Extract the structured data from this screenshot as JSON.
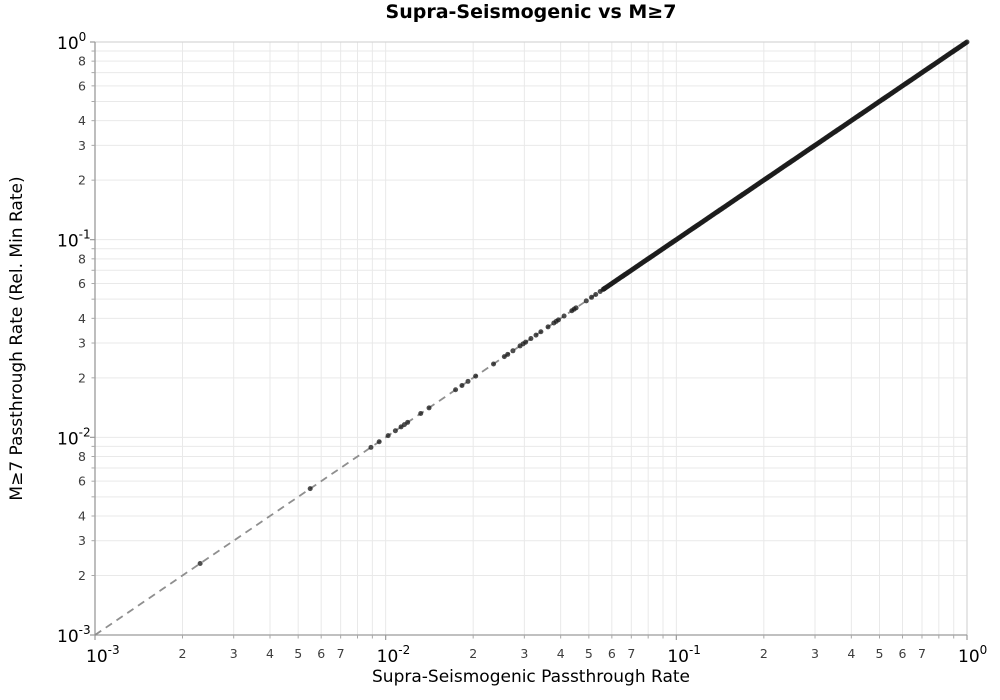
{
  "title": "Supra-Seismogenic vs M≥7",
  "xlabel": "Supra-Seismogenic Passthrough Rate",
  "ylabel": "M≥7 Passthrough Rate (Rel. Min Rate)",
  "chart_data": {
    "type": "scatter",
    "title": "Supra-Seismogenic vs M≥7",
    "xlabel": "Supra-Seismogenic Passthrough Rate",
    "ylabel": "M≥7 Passthrough Rate (Rel. Min Rate)",
    "xscale": "log",
    "yscale": "log",
    "xlim": [
      0.001,
      1.0
    ],
    "ylim": [
      0.001,
      1.0
    ],
    "grid": "on",
    "legend": "none",
    "relation": "all points lie on the identity line y = x",
    "identity_line": {
      "style": "dashed",
      "from": 0.001,
      "to": 1.0
    },
    "x_axis": {
      "major_tick_exponents": [
        -3,
        -2,
        -1,
        0
      ],
      "major_tick_labels": [
        "10⁻³",
        "10⁻²",
        "10⁻¹",
        "10⁰"
      ],
      "minor_label_digits": [
        2,
        3,
        4,
        5,
        6,
        7
      ],
      "minor_grid_digits": [
        2,
        3,
        4,
        5,
        6,
        7,
        8,
        9
      ]
    },
    "y_axis": {
      "major_tick_exponents": [
        -3,
        -2,
        -1,
        0
      ],
      "major_tick_labels": [
        "10⁻³",
        "10⁻²",
        "10⁻¹",
        "10⁰"
      ],
      "minor_label_digits": [
        8,
        6,
        4,
        3,
        2
      ],
      "minor_grid_digits": [
        2,
        3,
        4,
        5,
        6,
        7,
        8,
        9
      ]
    },
    "sparse_points_x": [
      0.0023,
      0.0055,
      0.0089,
      0.0095,
      0.0102,
      0.0108,
      0.0113,
      0.0116,
      0.0119,
      0.0132,
      0.0141,
      0.0174,
      0.0183,
      0.0192,
      0.0204,
      0.0235,
      0.0256,
      0.0263,
      0.0274,
      0.029,
      0.0297,
      0.0303,
      0.0316,
      0.0329,
      0.0342,
      0.0362,
      0.0379,
      0.0386,
      0.0393,
      0.0411,
      0.0437,
      0.0445,
      0.0452,
      0.049,
      0.0511,
      0.0528,
      0.0547,
      0.0565
    ],
    "dense_band": {
      "x_min": 0.056,
      "x_max": 1.0,
      "count": 400,
      "spacing": "log-uniform",
      "note": "points so dense they render as a solid thick black diagonal"
    },
    "colors": {
      "point": "#1c1c1c",
      "point_opacity": 0.78,
      "identity_line": "#8f8f8f",
      "grid": "#e9e9e9",
      "axis": "#9a9a9a",
      "border": "#d6d6d6",
      "tick": "#a8a8a8",
      "minor_tick_label": "#3d3d3d",
      "major_tick_label": "#000000"
    }
  }
}
